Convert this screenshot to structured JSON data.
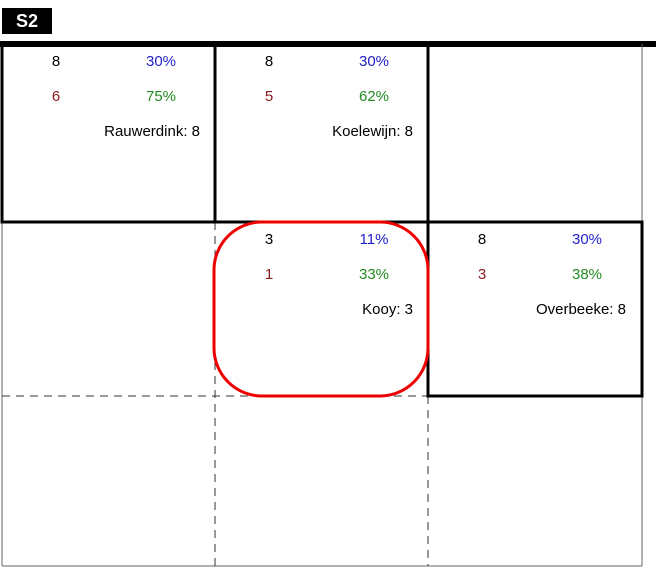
{
  "header": {
    "title": "S2"
  },
  "grid": {
    "rows": [
      [
        {
          "count": "8",
          "count_pct": "30%",
          "sub": "6",
          "sub_pct": "75%",
          "label": "Rauwerdink: 8"
        },
        {
          "count": "8",
          "count_pct": "30%",
          "sub": "5",
          "sub_pct": "62%",
          "label": "Koelewijn: 8"
        },
        null
      ],
      [
        null,
        {
          "count": "3",
          "count_pct": "11%",
          "sub": "1",
          "sub_pct": "33%",
          "label": "Kooy: 3"
        },
        {
          "count": "8",
          "count_pct": "30%",
          "sub": "3",
          "sub_pct": "38%",
          "label": "Overbeeke: 8"
        }
      ],
      [
        null,
        null,
        null
      ]
    ]
  }
}
